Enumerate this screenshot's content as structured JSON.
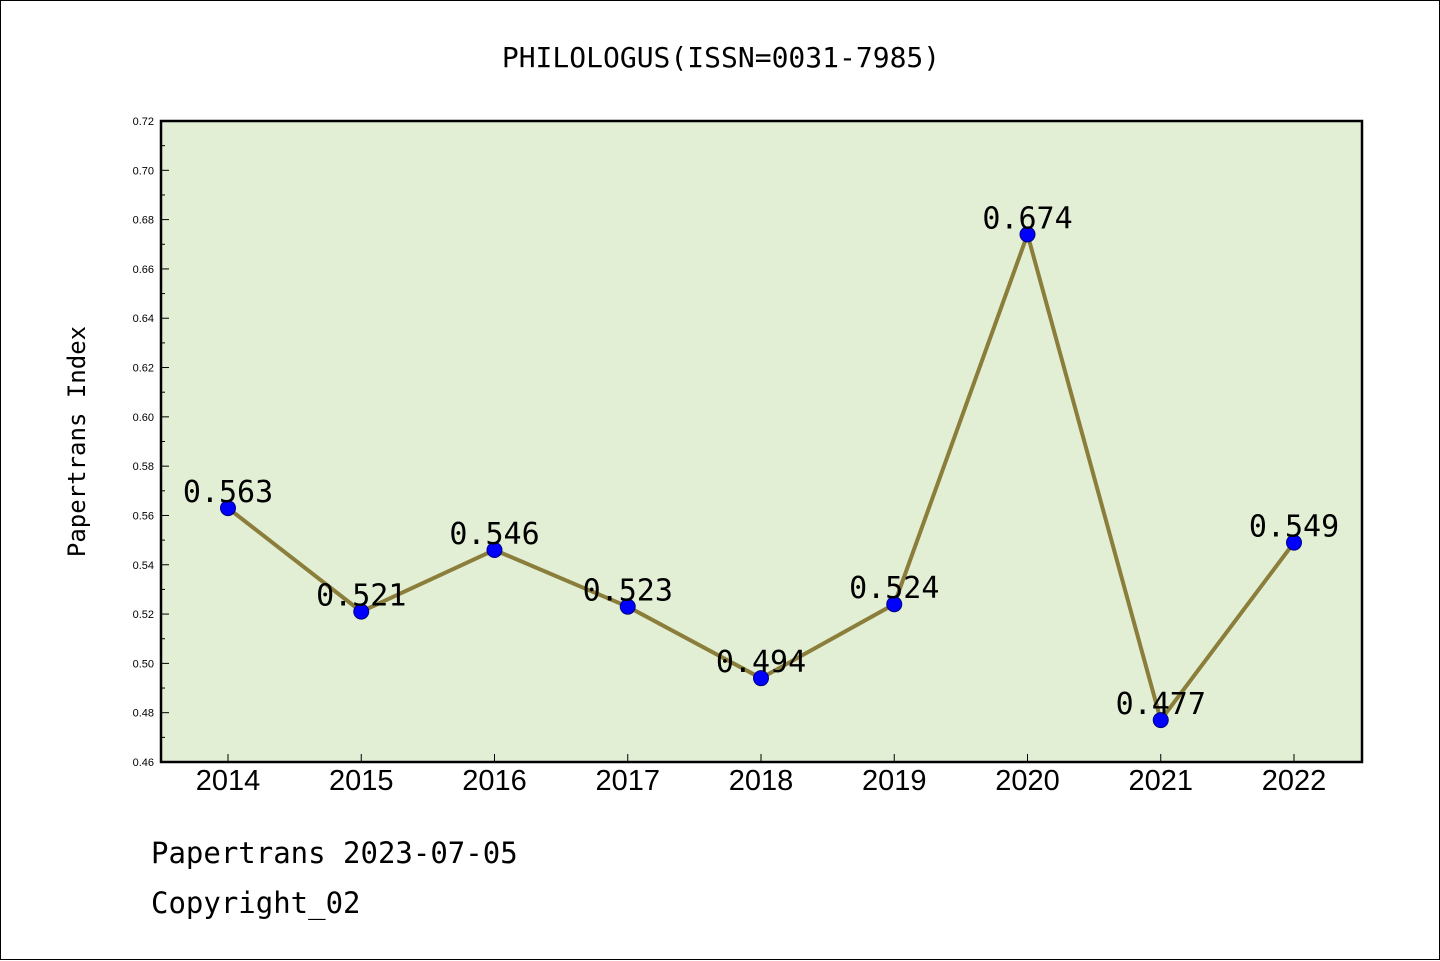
{
  "chart_data": {
    "type": "line",
    "title": "PHILOLOGUS(ISSN=0031-7985)",
    "ylabel": "Papertrans Index",
    "xlabel": "",
    "categories": [
      "2014",
      "2015",
      "2016",
      "2017",
      "2018",
      "2019",
      "2020",
      "2021",
      "2022"
    ],
    "values": [
      0.563,
      0.521,
      0.546,
      0.523,
      0.494,
      0.524,
      0.674,
      0.477,
      0.549
    ],
    "data_labels": [
      "0.563",
      "0.521",
      "0.546",
      "0.523",
      "0.494",
      "0.524",
      "0.674",
      "0.477",
      "0.549"
    ],
    "ylim": [
      0.46,
      0.72
    ],
    "yticks": [
      "0.46",
      "0.48",
      "0.50",
      "0.52",
      "0.54",
      "0.56",
      "0.58",
      "0.60",
      "0.62",
      "0.64",
      "0.66",
      "0.68",
      "0.70",
      "0.72"
    ],
    "grid": false,
    "legend": "none",
    "colors": {
      "plot_background": "#e2efd5",
      "line": "#8b7d3a",
      "marker_fill": "#0000ff",
      "marker_edge": "#000080"
    }
  },
  "footer": {
    "date_line": "Papertrans 2023-07-05",
    "copyright": "Copyright_02"
  }
}
